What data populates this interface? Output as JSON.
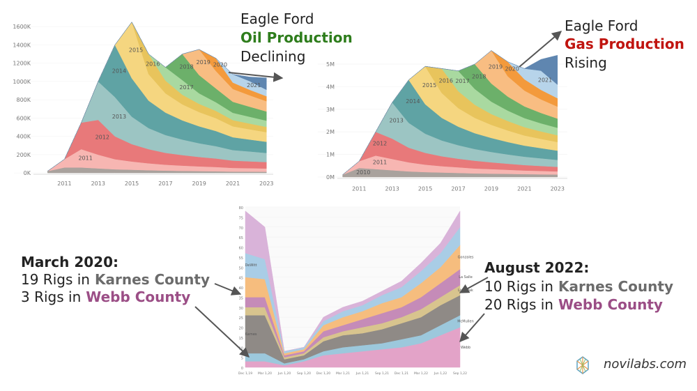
{
  "chart_data": [
    {
      "type": "area",
      "stacked": true,
      "x": [
        2010,
        2011,
        2012,
        2013,
        2014,
        2015,
        2016,
        2017,
        2018,
        2019,
        2020,
        2021,
        2022,
        2023
      ],
      "xlim": [
        2008,
        2023.4
      ],
      "xticks": [
        2011,
        2013,
        2015,
        2017,
        2019,
        2021,
        2023
      ],
      "ylim": [
        -60,
        1700
      ],
      "yticks": [
        {
          "value": 0,
          "label": "0K"
        },
        {
          "value": 200,
          "label": "200K"
        },
        {
          "value": 400,
          "label": "400K"
        },
        {
          "value": 600,
          "label": "600K"
        },
        {
          "value": 800,
          "label": "800K"
        },
        {
          "value": 1000,
          "label": "1000K"
        },
        {
          "value": 1200,
          "label": "1200K"
        },
        {
          "value": 1400,
          "label": "1400K"
        },
        {
          "value": 1600,
          "label": "1600K"
        }
      ],
      "series": [
        {
          "color": "#a9a29d",
          "values": [
            20,
            60,
            60,
            50,
            40,
            35,
            30,
            25,
            22,
            20,
            18,
            15,
            14,
            13
          ]
        },
        {
          "name": "2011",
          "color": "#f7b6b2",
          "values": [
            0,
            90,
            200,
            150,
            110,
            90,
            75,
            65,
            58,
            52,
            47,
            40,
            38,
            36
          ]
        },
        {
          "name": "2012",
          "color": "#e8797a",
          "values": [
            0,
            0,
            290,
            380,
            250,
            190,
            155,
            130,
            115,
            103,
            93,
            80,
            75,
            70
          ]
        },
        {
          "name": "2013",
          "color": "#9cc5c3",
          "values": [
            0,
            0,
            0,
            420,
            430,
            300,
            230,
            195,
            170,
            150,
            135,
            115,
            108,
            100
          ]
        },
        {
          "name": "2014",
          "color": "#5fa3a4",
          "values": [
            0,
            0,
            0,
            0,
            570,
            420,
            300,
            245,
            210,
            185,
            165,
            140,
            130,
            122
          ]
        },
        {
          "name": "2015",
          "color": "#f5d680",
          "values": [
            0,
            0,
            0,
            0,
            0,
            615,
            290,
            210,
            175,
            155,
            140,
            120,
            112,
            105
          ]
        },
        {
          "name": "2016",
          "color": "#e8c45c",
          "values": [
            0,
            0,
            0,
            0,
            0,
            0,
            220,
            140,
            105,
            90,
            80,
            68,
            63,
            58
          ]
        },
        {
          "name": "2017",
          "color": "#a9d9a0",
          "values": [
            0,
            0,
            0,
            0,
            0,
            0,
            0,
            145,
            160,
            115,
            95,
            80,
            74,
            68
          ]
        },
        {
          "name": "2018",
          "color": "#6cb06a",
          "values": [
            0,
            0,
            0,
            0,
            0,
            0,
            0,
            0,
            285,
            200,
            150,
            120,
            110,
            100
          ]
        },
        {
          "name": "2019",
          "color": "#f8bd82",
          "values": [
            0,
            0,
            0,
            0,
            0,
            0,
            0,
            0,
            0,
            280,
            190,
            140,
            125,
            112
          ]
        },
        {
          "name": "2020",
          "color": "#f39a3c",
          "values": [
            0,
            0,
            0,
            0,
            0,
            0,
            0,
            0,
            0,
            0,
            140,
            70,
            60,
            55
          ]
        },
        {
          "name": "2021",
          "color": "#b7d4ea",
          "values": [
            0,
            0,
            0,
            0,
            0,
            0,
            0,
            0,
            0,
            0,
            0,
            90,
            95,
            70
          ]
        },
        {
          "color": "#5f86b0",
          "values": [
            0,
            0,
            0,
            0,
            0,
            0,
            0,
            0,
            0,
            0,
            0,
            0,
            45,
            130
          ]
        }
      ]
    },
    {
      "type": "area",
      "stacked": true,
      "x": [
        2010,
        2011,
        2012,
        2013,
        2014,
        2015,
        2016,
        2017,
        2018,
        2019,
        2020,
        2021,
        2022,
        2023
      ],
      "xlim": [
        2008.5,
        2023.6
      ],
      "xticks": [
        2011,
        2013,
        2015,
        2017,
        2019,
        2021,
        2023
      ],
      "ylim": [
        -0.3,
        5.9
      ],
      "yticks": [
        {
          "value": 0,
          "label": "0M"
        },
        {
          "value": 1,
          "label": "1M"
        },
        {
          "value": 2,
          "label": "2M"
        },
        {
          "value": 3,
          "label": "3M"
        },
        {
          "value": 4,
          "label": "4M"
        },
        {
          "value": 5,
          "label": "5M"
        }
      ],
      "series": [
        {
          "name": "2010",
          "color": "#a9a29d",
          "values": [
            0.1,
            0.4,
            0.35,
            0.3,
            0.25,
            0.22,
            0.2,
            0.18,
            0.16,
            0.15,
            0.14,
            0.13,
            0.12,
            0.11
          ]
        },
        {
          "name": "2011",
          "color": "#f7b6b2",
          "values": [
            0,
            0.3,
            0.6,
            0.5,
            0.4,
            0.33,
            0.28,
            0.25,
            0.22,
            0.2,
            0.18,
            0.16,
            0.15,
            0.14
          ]
        },
        {
          "name": "2012",
          "color": "#e8797a",
          "values": [
            0,
            0,
            1.05,
            0.9,
            0.65,
            0.52,
            0.44,
            0.38,
            0.34,
            0.3,
            0.27,
            0.24,
            0.22,
            0.2
          ]
        },
        {
          "name": "2013",
          "color": "#9cc5c3",
          "values": [
            0,
            0,
            0,
            1.6,
            1.1,
            0.85,
            0.7,
            0.6,
            0.52,
            0.46,
            0.41,
            0.37,
            0.34,
            0.31
          ]
        },
        {
          "name": "2014",
          "color": "#5fa3a4",
          "values": [
            0,
            0,
            0,
            0,
            1.9,
            1.3,
            1.0,
            0.82,
            0.7,
            0.62,
            0.55,
            0.49,
            0.45,
            0.41
          ]
        },
        {
          "name": "2015",
          "color": "#f5d680",
          "values": [
            0,
            0,
            0,
            0,
            0,
            1.68,
            1.1,
            0.82,
            0.68,
            0.58,
            0.51,
            0.45,
            0.41,
            0.38
          ]
        },
        {
          "name": "2016",
          "color": "#e8c45c",
          "values": [
            0,
            0,
            0,
            0,
            0,
            0,
            1.08,
            0.75,
            0.58,
            0.48,
            0.42,
            0.37,
            0.33,
            0.3
          ]
        },
        {
          "name": "2017",
          "color": "#a9d9a0",
          "values": [
            0,
            0,
            0,
            0,
            0,
            0,
            0,
            0.9,
            0.7,
            0.55,
            0.46,
            0.4,
            0.36,
            0.33
          ]
        },
        {
          "name": "2018",
          "color": "#6cb06a",
          "values": [
            0,
            0,
            0,
            0,
            0,
            0,
            0,
            0,
            1.1,
            0.8,
            0.62,
            0.52,
            0.46,
            0.41
          ]
        },
        {
          "name": "2019",
          "color": "#f8bd82",
          "values": [
            0,
            0,
            0,
            0,
            0,
            0,
            0,
            0,
            0,
            1.46,
            0.9,
            0.7,
            0.6,
            0.53
          ]
        },
        {
          "name": "2020",
          "color": "#f39a3c",
          "values": [
            0,
            0,
            0,
            0,
            0,
            0,
            0,
            0,
            0,
            0,
            0.64,
            0.5,
            0.42,
            0.37
          ]
        },
        {
          "name": "2021",
          "color": "#b7d4ea",
          "values": [
            0,
            0,
            0,
            0,
            0,
            0,
            0,
            0,
            0,
            0,
            0,
            0.47,
            0.85,
            0.6
          ]
        },
        {
          "color": "#5f86b0",
          "values": [
            0,
            0,
            0,
            0,
            0,
            0,
            0,
            0,
            0,
            0,
            0,
            0,
            0.5,
            1.3
          ]
        }
      ]
    },
    {
      "type": "area",
      "stacked": true,
      "categories": [
        "Dec 1,19",
        "Mar 1,20",
        "Jun 1,20",
        "Sep 1,20",
        "Dec 1,20",
        "Mar 1,21",
        "Jun 1,21",
        "Sep 1,21",
        "Dec 1,21",
        "Mar 1,22",
        "Jun 1,22",
        "Sep 1,22"
      ],
      "ylim": [
        0,
        80
      ],
      "yticks": [
        0,
        5,
        10,
        15,
        20,
        25,
        30,
        35,
        40,
        45,
        50,
        55,
        60,
        65,
        70,
        75,
        80
      ],
      "series": [
        {
          "name": "Webb",
          "color": "#e3a3c8",
          "values": [
            3,
            3,
            1,
            3,
            6,
            7,
            8,
            9,
            10,
            12,
            16,
            20
          ]
        },
        {
          "name": "McMullen",
          "color": "#9cc8dc",
          "values": [
            4,
            4,
            1,
            1,
            2,
            3,
            3,
            3,
            4,
            4,
            5,
            6
          ]
        },
        {
          "name": "Karnes",
          "color": "#8f8a86",
          "values": [
            19,
            19,
            2,
            2,
            5,
            6,
            6,
            7,
            8,
            9,
            10,
            10
          ]
        },
        {
          "name": "Live Oak",
          "color": "#d8c48e",
          "values": [
            4,
            4,
            1,
            1,
            2,
            2,
            3,
            3,
            3,
            4,
            4,
            5
          ]
        },
        {
          "name": "La Salle",
          "color": "#c58bb8",
          "values": [
            5,
            5,
            1,
            1,
            3,
            3,
            4,
            5,
            5,
            6,
            7,
            8
          ]
        },
        {
          "name": "Gonzales",
          "color": "#f6bd7e",
          "values": [
            10,
            9,
            1,
            1,
            3,
            4,
            4,
            5,
            5,
            7,
            8,
            12
          ]
        },
        {
          "name": "DeWitt",
          "color": "#a9cde6",
          "values": [
            12,
            10,
            1,
            1,
            2,
            3,
            3,
            4,
            5,
            6,
            7,
            9
          ]
        },
        {
          "color": "#d9b3d9",
          "values": [
            21,
            16,
            0,
            0,
            2,
            2,
            2,
            2,
            3,
            4,
            5,
            8
          ]
        }
      ]
    }
  ],
  "annotations": {
    "oil": [
      "Eagle Ford",
      "Oil Production",
      "Declining"
    ],
    "gas": [
      "Eagle Ford",
      "Gas Production",
      "Rising"
    ],
    "march": {
      "title": "March 2020:",
      "line1": "19 Rigs in",
      "county1": "Karnes County",
      "line2": "3 Rigs in",
      "county2": "Webb County"
    },
    "august": {
      "title": "August 2022:",
      "line1": "10 Rigs in",
      "county1": "Karnes County",
      "line2": "20 Rigs in",
      "county2": "Webb County"
    }
  },
  "logo": "novilabs.com"
}
